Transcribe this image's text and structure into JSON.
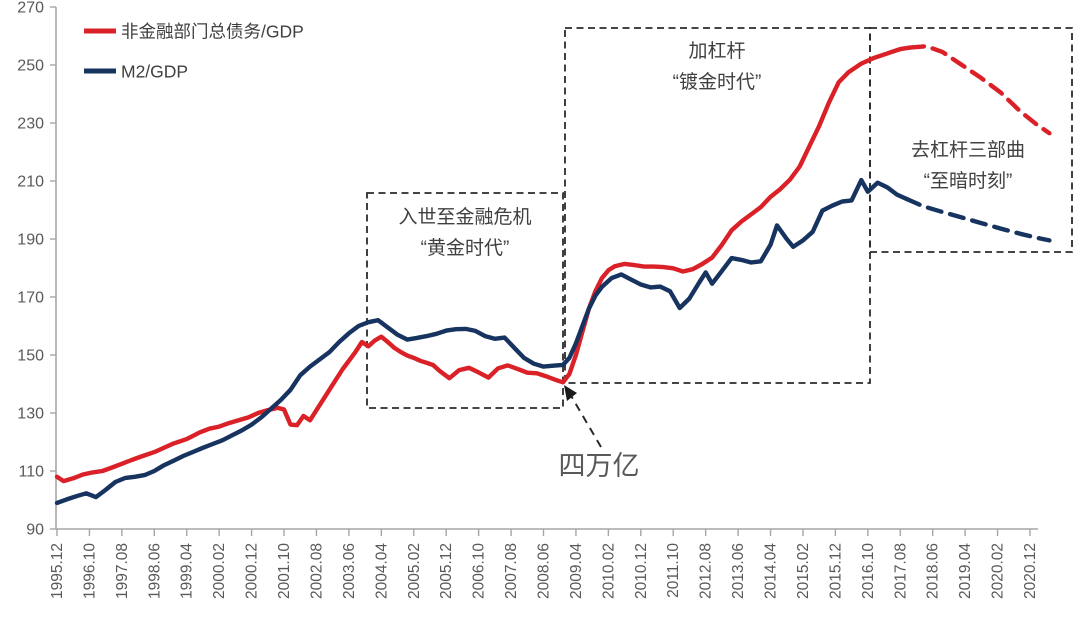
{
  "chart_data": {
    "type": "line",
    "title": "",
    "xlabel": "",
    "ylabel": "",
    "ylim": [
      90,
      270
    ],
    "y_ticks": [
      90,
      110,
      130,
      150,
      170,
      190,
      210,
      230,
      250,
      270
    ],
    "x_tick_labels": [
      "1995.12",
      "1996.10",
      "1997.08",
      "1998.06",
      "1999.04",
      "2000.02",
      "2000.12",
      "2001.10",
      "2002.08",
      "2003.06",
      "2004.04",
      "2005.02",
      "2005.12",
      "2006.10",
      "2007.08",
      "2008.06",
      "2009.04",
      "2010.02",
      "2010.12",
      "2011.10",
      "2012.08",
      "2013.06",
      "2014.04",
      "2015.02",
      "2015.12",
      "2016.10",
      "2017.08",
      "2018.06",
      "2019.04",
      "2020.02",
      "2020.12"
    ],
    "x_tick_interval_months": 10,
    "grid": false,
    "legend_position": "top-left",
    "legend": [
      {
        "label": "非金融部门总债务/GDP",
        "color": "#da2128"
      },
      {
        "label": "M2/GDP",
        "color": "#17335f"
      }
    ],
    "series": [
      {
        "id": "debt-gdp",
        "name": "非金融部门总债务/GDP",
        "color": "#da2128",
        "style": "solid",
        "points": [
          [
            0,
            108
          ],
          [
            2,
            106.5
          ],
          [
            5,
            107.5
          ],
          [
            8,
            108.8
          ],
          [
            11,
            109.5
          ],
          [
            14,
            110
          ],
          [
            17,
            111.2
          ],
          [
            20,
            112.5
          ],
          [
            23,
            113.8
          ],
          [
            26,
            115
          ],
          [
            30,
            116.5
          ],
          [
            33,
            118
          ],
          [
            36,
            119.5
          ],
          [
            40,
            121
          ],
          [
            44,
            123.3
          ],
          [
            47,
            124.6
          ],
          [
            50,
            125.3
          ],
          [
            53,
            126.5
          ],
          [
            56,
            127.5
          ],
          [
            59,
            128.5
          ],
          [
            62,
            130
          ],
          [
            65,
            131
          ],
          [
            68,
            131.8
          ],
          [
            70,
            131.2
          ],
          [
            72,
            126
          ],
          [
            74,
            125.8
          ],
          [
            76,
            129
          ],
          [
            78,
            127.5
          ],
          [
            80,
            131
          ],
          [
            84,
            138
          ],
          [
            88,
            145
          ],
          [
            92,
            151
          ],
          [
            94,
            154.5
          ],
          [
            96,
            153
          ],
          [
            98,
            155
          ],
          [
            100,
            156.3
          ],
          [
            102,
            154.5
          ],
          [
            104,
            152.5
          ],
          [
            106,
            151
          ],
          [
            108,
            149.8
          ],
          [
            110,
            149
          ],
          [
            112,
            148
          ],
          [
            114,
            147.3
          ],
          [
            116,
            146.5
          ],
          [
            118,
            144.5
          ],
          [
            121,
            142
          ],
          [
            124,
            144.8
          ],
          [
            127,
            145.6
          ],
          [
            130,
            144
          ],
          [
            133,
            142.2
          ],
          [
            136,
            145.4
          ],
          [
            139,
            146.4
          ],
          [
            142,
            145.2
          ],
          [
            145,
            143.9
          ],
          [
            148,
            143.7
          ],
          [
            151,
            142.6
          ],
          [
            154,
            141.3
          ],
          [
            156,
            140.6
          ],
          [
            158,
            143.5
          ],
          [
            160,
            150
          ],
          [
            162,
            158
          ],
          [
            164,
            166
          ],
          [
            166,
            172
          ],
          [
            168,
            176.5
          ],
          [
            170,
            179.2
          ],
          [
            172,
            180.6
          ],
          [
            175,
            181.4
          ],
          [
            178,
            181
          ],
          [
            181,
            180.5
          ],
          [
            184,
            180.5
          ],
          [
            187,
            180.3
          ],
          [
            190,
            179.9
          ],
          [
            193,
            178.8
          ],
          [
            196,
            179.6
          ],
          [
            199,
            181.4
          ],
          [
            202,
            183.6
          ],
          [
            205,
            188
          ],
          [
            208,
            193
          ],
          [
            211,
            196
          ],
          [
            214,
            198.5
          ],
          [
            217,
            201
          ],
          [
            220,
            204.5
          ],
          [
            223,
            207.2
          ],
          [
            226,
            210.5
          ],
          [
            229,
            215
          ],
          [
            232,
            222
          ],
          [
            235,
            229
          ],
          [
            238,
            237
          ],
          [
            241,
            244
          ],
          [
            244,
            247.5
          ],
          [
            248,
            250.5
          ],
          [
            252,
            252.5
          ],
          [
            256,
            254
          ],
          [
            260,
            255.5
          ],
          [
            263,
            256
          ]
        ]
      },
      {
        "id": "debt-gdp-forecast",
        "name": "非金融部门总债务/GDP (虚线展望)",
        "color": "#da2128",
        "style": "dashed",
        "points": [
          [
            263,
            256
          ],
          [
            268,
            256.5
          ],
          [
            273,
            254.5
          ],
          [
            279,
            250
          ],
          [
            285,
            245.5
          ],
          [
            291,
            240.5
          ],
          [
            297,
            234
          ],
          [
            302,
            229.5
          ],
          [
            306,
            226.5
          ]
        ]
      },
      {
        "id": "m2-gdp",
        "name": "M2/GDP",
        "color": "#17335f",
        "style": "solid",
        "points": [
          [
            0,
            99
          ],
          [
            3,
            100.2
          ],
          [
            6,
            101.3
          ],
          [
            9,
            102.3
          ],
          [
            12,
            101
          ],
          [
            15,
            103.5
          ],
          [
            18,
            106.2
          ],
          [
            21,
            107.6
          ],
          [
            24,
            108
          ],
          [
            27,
            108.6
          ],
          [
            30,
            110
          ],
          [
            33,
            112
          ],
          [
            36,
            113.6
          ],
          [
            39,
            115.2
          ],
          [
            42,
            116.6
          ],
          [
            45,
            118
          ],
          [
            48,
            119.3
          ],
          [
            51,
            120.6
          ],
          [
            54,
            122.3
          ],
          [
            57,
            124
          ],
          [
            60,
            126
          ],
          [
            63,
            128.5
          ],
          [
            66,
            131.5
          ],
          [
            69,
            134.5
          ],
          [
            72,
            138
          ],
          [
            75,
            143
          ],
          [
            78,
            146
          ],
          [
            81,
            148.5
          ],
          [
            84,
            151
          ],
          [
            87,
            154.5
          ],
          [
            90,
            157.5
          ],
          [
            93,
            160
          ],
          [
            96,
            161.3
          ],
          [
            99,
            162
          ],
          [
            102,
            159.5
          ],
          [
            105,
            157
          ],
          [
            108,
            155.3
          ],
          [
            111,
            155.9
          ],
          [
            114,
            156.5
          ],
          [
            117,
            157.3
          ],
          [
            120,
            158.4
          ],
          [
            123,
            158.9
          ],
          [
            126,
            159
          ],
          [
            129,
            158.3
          ],
          [
            132,
            156.5
          ],
          [
            135,
            155.6
          ],
          [
            138,
            156
          ],
          [
            141,
            152.5
          ],
          [
            144,
            149
          ],
          [
            147,
            147
          ],
          [
            150,
            146
          ],
          [
            153,
            146.3
          ],
          [
            156,
            146.6
          ],
          [
            158,
            149
          ],
          [
            160,
            154
          ],
          [
            162,
            160
          ],
          [
            164,
            166
          ],
          [
            166,
            170.5
          ],
          [
            168,
            173.5
          ],
          [
            171,
            176.5
          ],
          [
            174,
            177.8
          ],
          [
            177,
            176
          ],
          [
            180,
            174.3
          ],
          [
            183,
            173.3
          ],
          [
            186,
            173.6
          ],
          [
            189,
            172
          ],
          [
            192,
            166.2
          ],
          [
            195,
            169.5
          ],
          [
            198,
            175
          ],
          [
            200,
            178.5
          ],
          [
            202,
            174.6
          ],
          [
            205,
            179
          ],
          [
            208,
            183.4
          ],
          [
            211,
            182.8
          ],
          [
            214,
            181.9
          ],
          [
            217,
            182.3
          ],
          [
            220,
            188
          ],
          [
            222,
            194.7
          ],
          [
            225,
            190
          ],
          [
            227,
            187.3
          ],
          [
            230,
            189.5
          ],
          [
            233,
            192.5
          ],
          [
            236,
            199.8
          ],
          [
            239,
            201.5
          ],
          [
            242,
            202.9
          ],
          [
            245,
            203.3
          ],
          [
            248,
            210.3
          ],
          [
            250,
            206.3
          ],
          [
            253,
            209.4
          ],
          [
            256,
            207.8
          ],
          [
            259,
            205.3
          ],
          [
            262,
            203.8
          ]
        ]
      },
      {
        "id": "m2-gdp-forecast",
        "name": "M2/GDP (虚线展望)",
        "color": "#17335f",
        "style": "dashed",
        "points": [
          [
            262,
            203.8
          ],
          [
            267,
            201.3
          ],
          [
            273,
            199.3
          ],
          [
            279,
            197.4
          ],
          [
            285,
            195.5
          ],
          [
            291,
            193.6
          ],
          [
            297,
            191.8
          ],
          [
            303,
            190.2
          ],
          [
            306,
            189.5
          ]
        ]
      }
    ],
    "annotations": {
      "boxes": [
        {
          "id": "golden-era",
          "lines": [
            "入世至金融危机",
            "“黄金时代”"
          ],
          "x1": 367,
          "y1": 193,
          "x2": 563,
          "y2": 408,
          "label_x": 465,
          "label_y": 223
        },
        {
          "id": "gilded-era",
          "lines": [
            "加杠杆",
            "“镀金时代”"
          ],
          "x1": 565,
          "y1": 28,
          "x2": 870,
          "y2": 383,
          "label_x": 717,
          "label_y": 57
        },
        {
          "id": "darkest-hour",
          "lines": [
            "去杠杆三部曲",
            "“至暗时刻”"
          ],
          "x1": 870,
          "y1": 28,
          "x2": 1072,
          "y2": 252,
          "label_x": 968,
          "label_y": 156
        }
      ],
      "arrow": {
        "label": "四万亿",
        "text_x": 599,
        "text_y": 475,
        "from_x": 601,
        "from_y": 447,
        "to_x": 570,
        "to_y": 394,
        "tip": [
          [
            564,
            385
          ],
          [
            577,
            393
          ],
          [
            567,
            401
          ]
        ]
      }
    },
    "colors": {
      "axis": "#a6a6a6",
      "tick_text": "#595959",
      "annotation_text": "#404040",
      "box_border": "#2b2b2b",
      "red_series": "#da2128",
      "navy_series": "#17335f"
    }
  }
}
